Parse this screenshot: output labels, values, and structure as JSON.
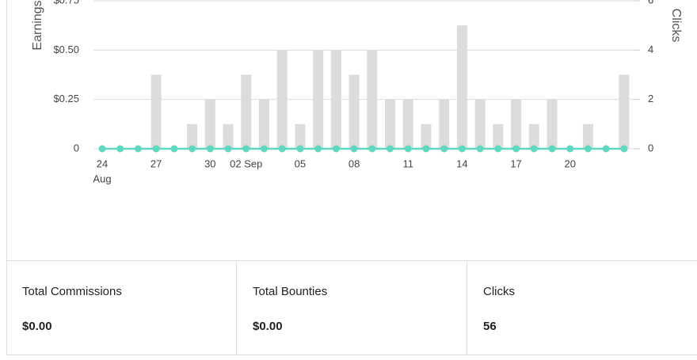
{
  "chart_data": {
    "type": "bar-line",
    "y_label": "Earnings",
    "y2_label": "Clicks",
    "categories": [
      "24",
      null,
      null,
      "27",
      null,
      null,
      "30",
      null,
      "02 Sep",
      null,
      null,
      "05",
      null,
      null,
      "08",
      null,
      null,
      "11",
      null,
      null,
      "14",
      null,
      null,
      "17",
      null,
      null,
      "20",
      null,
      null,
      null
    ],
    "category_sublabel": "Aug",
    "ylim": [
      0,
      0.75
    ],
    "yticks": [
      0,
      {
        "value": 0.25,
        "label": "$0.25"
      },
      {
        "value": 0.5,
        "label": "$0.50"
      },
      {
        "value": 0.75,
        "label": "$0.75"
      }
    ],
    "y2lim": [
      0,
      6
    ],
    "y2ticks": [
      0,
      2,
      4,
      6
    ],
    "grid": true,
    "series": [
      {
        "type": "line",
        "color": "#5fd8bf",
        "values": [
          0,
          0,
          0,
          0,
          0,
          0,
          0,
          0,
          0,
          0,
          0,
          0,
          0,
          0,
          0,
          0,
          0,
          0,
          0,
          0,
          0,
          0,
          0,
          0,
          0,
          0,
          0,
          0,
          0,
          0
        ]
      },
      {
        "type": "bar",
        "axis": "y2",
        "color": "#dcdcdc",
        "values": [
          0,
          0,
          0,
          3,
          0,
          1,
          2,
          1,
          3,
          2,
          4,
          1,
          4,
          4,
          3,
          4,
          2,
          2,
          1,
          2,
          5,
          2,
          1,
          2,
          1,
          2,
          0,
          1,
          0,
          3
        ]
      }
    ]
  },
  "summary": [
    {
      "label": "Total Commissions",
      "value": "$0.00"
    },
    {
      "label": "Total Bounties",
      "value": "$0.00"
    },
    {
      "label": "Clicks",
      "value": "56"
    }
  ]
}
